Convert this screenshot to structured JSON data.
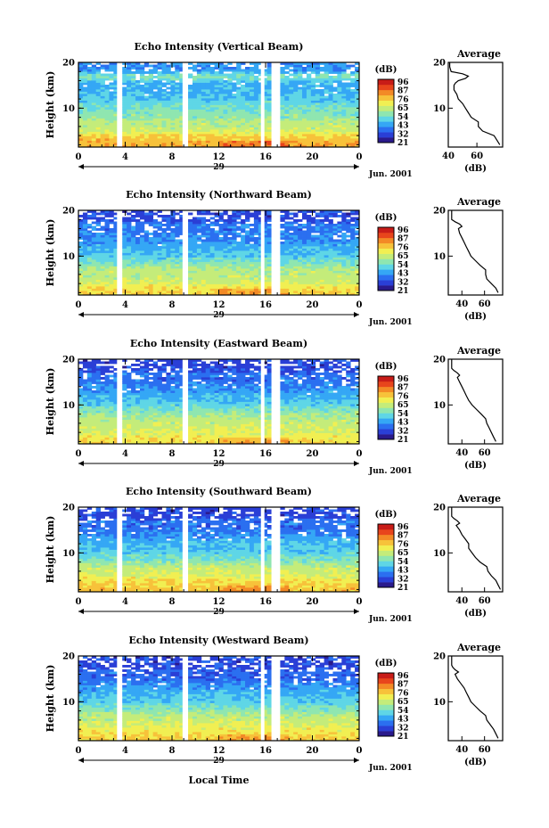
{
  "chart_data": {
    "type": "heatmap",
    "x_axis": {
      "ticks": [
        "0",
        "4",
        "8",
        "12",
        "16",
        "20",
        "0"
      ],
      "date_label": "29",
      "month_label": "Jun. 2001",
      "xlabel": "Local Time"
    },
    "y_axis": {
      "label": "Height (km)",
      "ticks": [
        "20",
        "10"
      ],
      "range": [
        1.5,
        20
      ]
    },
    "colorbar": {
      "unit": "(dB)",
      "ticks": [
        "96",
        "87",
        "76",
        "65",
        "54",
        "43",
        "32",
        "21"
      ],
      "range": [
        21,
        96
      ]
    },
    "data_gaps_local_time": [
      [
        3.3,
        3.6
      ],
      [
        8.9,
        9.2
      ],
      [
        15.6,
        15.9
      ],
      [
        16.5,
        17.1
      ]
    ],
    "profile_axis": {
      "title": "Average",
      "xlabel": "(dB)",
      "yticks": [
        "20",
        "10"
      ]
    },
    "panels": [
      {
        "title": "Echo Intensity (Vertical Beam)",
        "profile_xticks": [
          "40",
          "60"
        ],
        "profile_xrange": [
          40,
          78
        ],
        "profile": {
          "height_km": [
            2,
            3,
            4,
            5,
            6,
            7,
            8,
            9,
            10,
            11,
            12,
            13,
            14,
            15,
            15.5,
            16,
            16.5,
            17,
            17.5,
            18,
            19,
            20
          ],
          "db": [
            76,
            74,
            72,
            64,
            61,
            61,
            56,
            54,
            52,
            50,
            47,
            46,
            44,
            44,
            45,
            47,
            52,
            54,
            50,
            42,
            41,
            41
          ]
        },
        "date_label": "29"
      },
      {
        "title": "Echo Intensity (Northward Beam)",
        "profile_xticks": [
          "40",
          "60"
        ],
        "profile_xrange": [
          28,
          76
        ],
        "profile": {
          "height_km": [
            2,
            3,
            4,
            5,
            6,
            7,
            8,
            9,
            10,
            11,
            12,
            13,
            14,
            15,
            16,
            16.5,
            17,
            17.5,
            18,
            19,
            20
          ],
          "db": [
            72,
            70,
            66,
            62,
            61,
            61,
            56,
            52,
            48,
            46,
            44,
            42,
            40,
            38,
            37,
            40,
            38,
            34,
            31,
            31,
            31
          ]
        },
        "date_label": "29"
      },
      {
        "title": "Echo Intensity (Eastward Beam)",
        "profile_xticks": [
          "40",
          "60"
        ],
        "profile_xrange": [
          28,
          76
        ],
        "profile": {
          "height_km": [
            2,
            3,
            4,
            5,
            6,
            7,
            8,
            9,
            10,
            11,
            12,
            13,
            14,
            15,
            16,
            16.5,
            17,
            17.5,
            18,
            19,
            20
          ],
          "db": [
            70,
            68,
            66,
            64,
            62,
            61,
            57,
            53,
            49,
            46,
            44,
            42,
            40,
            38,
            36,
            38,
            36,
            33,
            31,
            31,
            31
          ]
        },
        "date_label": "29"
      },
      {
        "title": "Echo Intensity (Southward Beam)",
        "profile_xticks": [
          "40",
          "60"
        ],
        "profile_xrange": [
          28,
          76
        ],
        "profile": {
          "height_km": [
            2,
            3,
            4,
            5,
            6,
            7,
            8,
            9,
            10,
            11,
            12,
            13,
            14,
            15,
            16,
            16.5,
            17,
            17.5,
            18,
            19,
            20
          ],
          "db": [
            74,
            72,
            70,
            66,
            63,
            62,
            56,
            52,
            49,
            46,
            46,
            43,
            40,
            38,
            35,
            38,
            36,
            33,
            31,
            31,
            31
          ]
        },
        "date_label": "29"
      },
      {
        "title": "Echo Intensity (Westward Beam)",
        "profile_xticks": [
          "40",
          "60"
        ],
        "profile_xrange": [
          28,
          76
        ],
        "profile": {
          "height_km": [
            2,
            3,
            4,
            5,
            6,
            7,
            8,
            9,
            10,
            11,
            12,
            13,
            14,
            15,
            16,
            16.5,
            17,
            17.5,
            18,
            19,
            20
          ],
          "db": [
            72,
            70,
            68,
            65,
            62,
            61,
            56,
            52,
            48,
            46,
            44,
            42,
            39,
            36,
            34,
            37,
            34,
            32,
            31,
            31,
            31
          ]
        },
        "date_label": "29"
      }
    ]
  },
  "colormap": [
    "#2a1a8c",
    "#2a3fd6",
    "#2b6ff0",
    "#35a7f5",
    "#5fd6e6",
    "#8fe6b0",
    "#c4ec7a",
    "#f1ef52",
    "#f7c23a",
    "#f38a26",
    "#e8451c",
    "#c81c18"
  ]
}
